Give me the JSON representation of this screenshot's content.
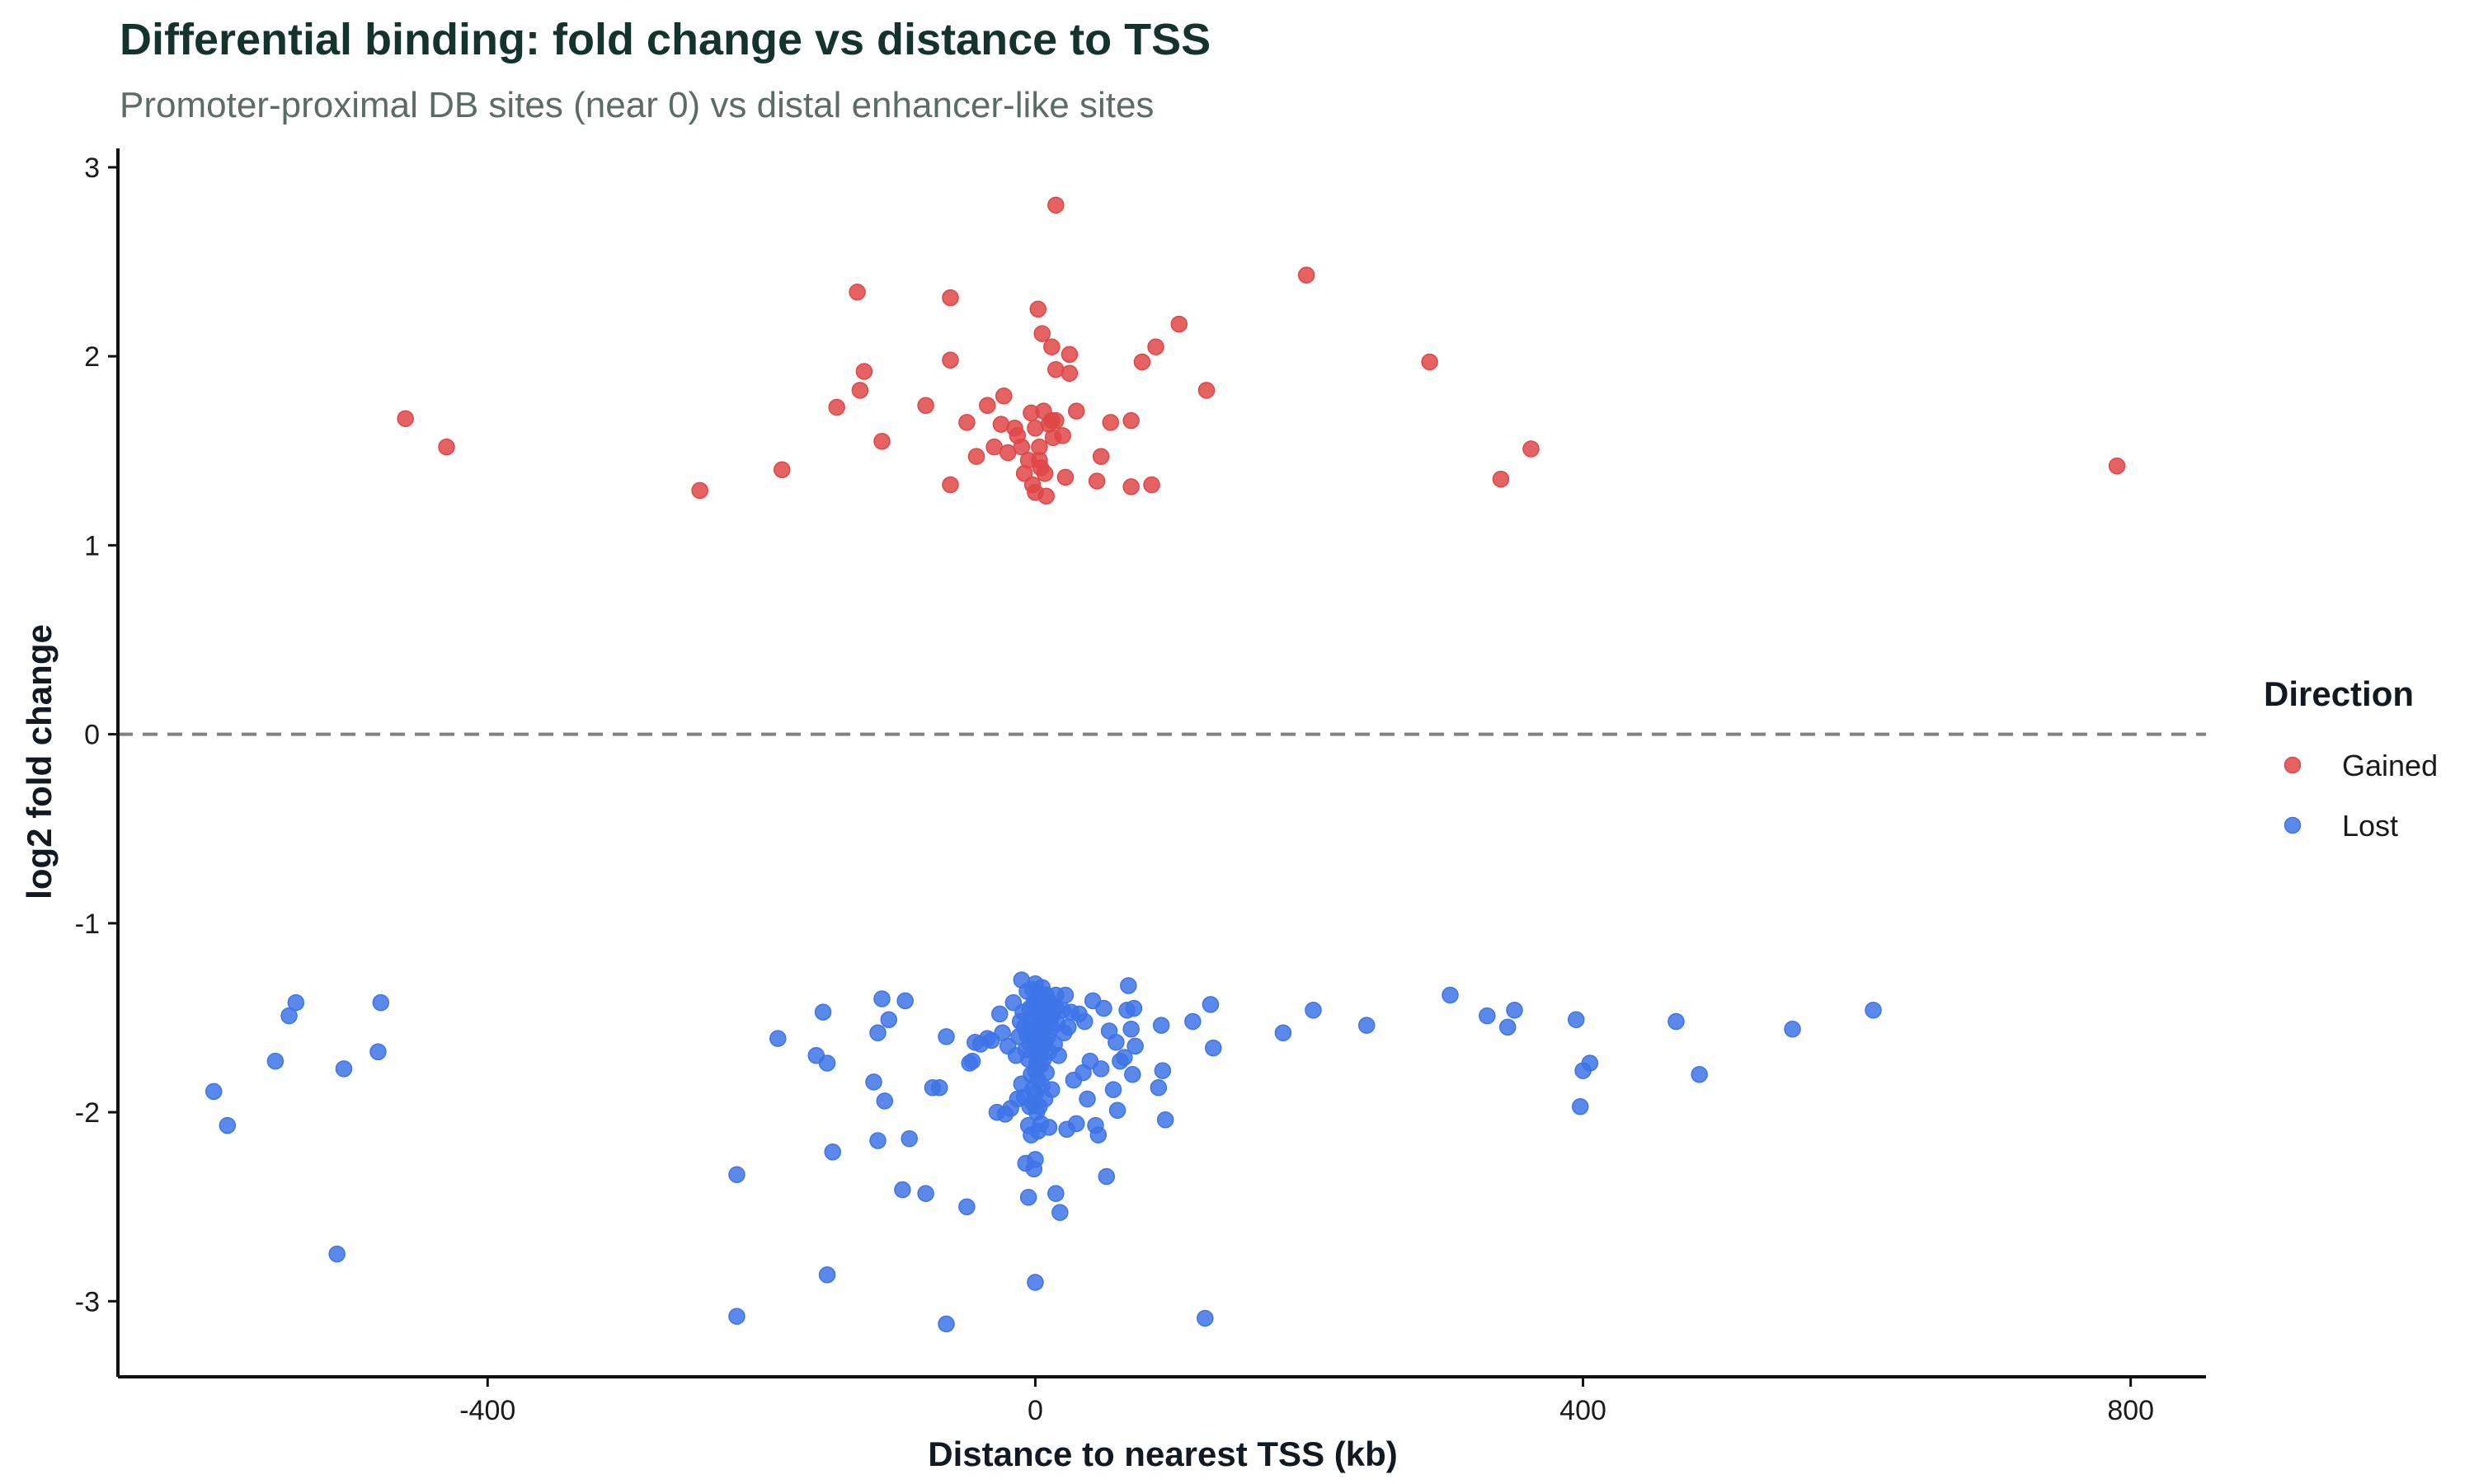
{
  "chart_data": {
    "type": "scatter",
    "title": "Differential binding: fold change vs distance to TSS",
    "subtitle": "Promoter-proximal DB sites (near 0) vs distal enhancer-like sites",
    "xlabel": "Distance to nearest TSS (kb)",
    "ylabel": "log2 fold change",
    "xlim": [
      -670,
      855
    ],
    "ylim": [
      -3.4,
      3.1
    ],
    "x_ticks": [
      -400,
      0,
      400,
      800
    ],
    "y_ticks": [
      -3,
      -2,
      -1,
      0,
      1,
      2,
      3
    ],
    "reference_line": {
      "y": 0,
      "style": "dashed",
      "color": "#808080"
    },
    "grid": false,
    "legend": {
      "title": "Direction",
      "placement": "right"
    },
    "series": [
      {
        "name": "Gained",
        "color": "#e04646",
        "points": [
          [
            -460,
            1.67
          ],
          [
            -430,
            1.52
          ],
          [
            -245,
            1.29
          ],
          [
            -185,
            1.4
          ],
          [
            -145,
            1.73
          ],
          [
            -130,
            2.34
          ],
          [
            -128,
            1.82
          ],
          [
            -125,
            1.92
          ],
          [
            -112,
            1.55
          ],
          [
            -80,
            1.74
          ],
          [
            -62,
            2.31
          ],
          [
            -62,
            1.98
          ],
          [
            -62,
            1.32
          ],
          [
            -50,
            1.65
          ],
          [
            -43,
            1.47
          ],
          [
            -35,
            1.74
          ],
          [
            -30,
            1.52
          ],
          [
            -25,
            1.64
          ],
          [
            -23,
            1.79
          ],
          [
            -20,
            1.49
          ],
          [
            -15,
            1.62
          ],
          [
            -13,
            1.58
          ],
          [
            -10,
            1.52
          ],
          [
            -8,
            1.38
          ],
          [
            -5,
            1.45
          ],
          [
            -3,
            1.7
          ],
          [
            -2,
            1.32
          ],
          [
            0,
            1.28
          ],
          [
            0,
            1.62
          ],
          [
            2,
            2.25
          ],
          [
            3,
            1.52
          ],
          [
            3,
            1.45
          ],
          [
            4,
            1.41
          ],
          [
            5,
            2.12
          ],
          [
            6,
            1.71
          ],
          [
            7,
            1.38
          ],
          [
            8,
            1.26
          ],
          [
            10,
            1.64
          ],
          [
            12,
            1.66
          ],
          [
            12,
            2.05
          ],
          [
            13,
            1.57
          ],
          [
            15,
            1.93
          ],
          [
            15,
            1.66
          ],
          [
            15,
            2.8
          ],
          [
            20,
            1.58
          ],
          [
            22,
            1.36
          ],
          [
            25,
            2.01
          ],
          [
            25,
            1.91
          ],
          [
            30,
            1.71
          ],
          [
            45,
            1.34
          ],
          [
            48,
            1.47
          ],
          [
            55,
            1.65
          ],
          [
            70,
            1.66
          ],
          [
            70,
            1.31
          ],
          [
            78,
            1.97
          ],
          [
            85,
            1.32
          ],
          [
            88,
            2.05
          ],
          [
            105,
            2.17
          ],
          [
            125,
            1.82
          ],
          [
            198,
            2.43
          ],
          [
            288,
            1.97
          ],
          [
            340,
            1.35
          ],
          [
            362,
            1.51
          ],
          [
            790,
            1.42
          ]
        ]
      },
      {
        "name": "Lost",
        "color": "#3d74e8",
        "points": [
          [
            -600,
            -1.89
          ],
          [
            -590,
            -2.07
          ],
          [
            -555,
            -1.73
          ],
          [
            -545,
            -1.49
          ],
          [
            -540,
            -1.42
          ],
          [
            -510,
            -2.75
          ],
          [
            -505,
            -1.77
          ],
          [
            -480,
            -1.68
          ],
          [
            -478,
            -1.42
          ],
          [
            -218,
            -3.08
          ],
          [
            -218,
            -2.33
          ],
          [
            -188,
            -1.61
          ],
          [
            -160,
            -1.7
          ],
          [
            -155,
            -1.47
          ],
          [
            -152,
            -1.74
          ],
          [
            -152,
            -2.86
          ],
          [
            -148,
            -2.21
          ],
          [
            -118,
            -1.84
          ],
          [
            -115,
            -1.58
          ],
          [
            -115,
            -2.15
          ],
          [
            -112,
            -1.4
          ],
          [
            -110,
            -1.94
          ],
          [
            -107,
            -1.51
          ],
          [
            -97,
            -2.41
          ],
          [
            -95,
            -1.41
          ],
          [
            -92,
            -2.14
          ],
          [
            -80,
            -2.43
          ],
          [
            -75,
            -1.87
          ],
          [
            -70,
            -1.87
          ],
          [
            -65,
            -1.6
          ],
          [
            -65,
            -3.12
          ],
          [
            -50,
            -2.5
          ],
          [
            -48,
            -1.74
          ],
          [
            -46,
            -1.73
          ],
          [
            -44,
            -1.63
          ],
          [
            -40,
            -1.64
          ],
          [
            -35,
            -1.61
          ],
          [
            -32,
            -1.62
          ],
          [
            -28,
            -2.0
          ],
          [
            -26,
            -1.48
          ],
          [
            -24,
            -1.58
          ],
          [
            -22,
            -2.01
          ],
          [
            -20,
            -1.65
          ],
          [
            -18,
            -1.98
          ],
          [
            -16,
            -1.42
          ],
          [
            -14,
            -1.7
          ],
          [
            -13,
            -1.93
          ],
          [
            -12,
            -1.6
          ],
          [
            -11,
            -1.52
          ],
          [
            -10,
            -1.85
          ],
          [
            -10,
            -1.3
          ],
          [
            -9,
            -1.47
          ],
          [
            -8,
            -1.55
          ],
          [
            -8,
            -1.92
          ],
          [
            -7,
            -1.67
          ],
          [
            -7,
            -2.27
          ],
          [
            -6,
            -1.36
          ],
          [
            -6,
            -1.59
          ],
          [
            -5,
            -2.07
          ],
          [
            -5,
            -1.72
          ],
          [
            -5,
            -2.45
          ],
          [
            -4,
            -1.45
          ],
          [
            -4,
            -1.64
          ],
          [
            -4,
            -1.97
          ],
          [
            -3,
            -1.52
          ],
          [
            -3,
            -1.8
          ],
          [
            -3,
            -2.12
          ],
          [
            -2,
            -1.35
          ],
          [
            -2,
            -1.58
          ],
          [
            -2,
            -1.88
          ],
          [
            -2,
            -1.95
          ],
          [
            -1,
            -1.42
          ],
          [
            -1,
            -1.68
          ],
          [
            -1,
            -2.3
          ],
          [
            0,
            -1.32
          ],
          [
            0,
            -1.5
          ],
          [
            0,
            -1.62
          ],
          [
            0,
            -1.78
          ],
          [
            0,
            -1.9
          ],
          [
            0,
            -2.25
          ],
          [
            0,
            -2.9
          ],
          [
            1,
            -1.4
          ],
          [
            1,
            -1.55
          ],
          [
            1,
            -1.74
          ],
          [
            1,
            -2.0
          ],
          [
            2,
            -1.46
          ],
          [
            2,
            -1.61
          ],
          [
            2,
            -1.83
          ],
          [
            2,
            -2.1
          ],
          [
            3,
            -1.37
          ],
          [
            3,
            -1.53
          ],
          [
            3,
            -1.69
          ],
          [
            3,
            -1.97
          ],
          [
            4,
            -1.44
          ],
          [
            4,
            -1.59
          ],
          [
            4,
            -1.75
          ],
          [
            4,
            -2.06
          ],
          [
            5,
            -1.34
          ],
          [
            5,
            -1.5
          ],
          [
            5,
            -1.66
          ],
          [
            5,
            -1.86
          ],
          [
            6,
            -1.41
          ],
          [
            6,
            -1.56
          ],
          [
            6,
            -1.72
          ],
          [
            7,
            -1.47
          ],
          [
            7,
            -1.63
          ],
          [
            7,
            -1.93
          ],
          [
            8,
            -1.38
          ],
          [
            8,
            -1.52
          ],
          [
            8,
            -1.79
          ],
          [
            9,
            -1.45
          ],
          [
            9,
            -1.6
          ],
          [
            10,
            -1.5
          ],
          [
            10,
            -1.68
          ],
          [
            10,
            -2.08
          ],
          [
            11,
            -1.42
          ],
          [
            12,
            -1.55
          ],
          [
            12,
            -1.88
          ],
          [
            13,
            -1.48
          ],
          [
            14,
            -1.64
          ],
          [
            15,
            -1.38
          ],
          [
            15,
            -1.45
          ],
          [
            15,
            -2.43
          ],
          [
            16,
            -1.53
          ],
          [
            17,
            -1.7
          ],
          [
            18,
            -2.53
          ],
          [
            20,
            -1.46
          ],
          [
            21,
            -1.58
          ],
          [
            22,
            -1.38
          ],
          [
            23,
            -2.09
          ],
          [
            24,
            -1.55
          ],
          [
            26,
            -1.47
          ],
          [
            28,
            -1.83
          ],
          [
            30,
            -2.06
          ],
          [
            32,
            -1.48
          ],
          [
            35,
            -1.79
          ],
          [
            36,
            -1.52
          ],
          [
            38,
            -1.93
          ],
          [
            40,
            -1.73
          ],
          [
            42,
            -1.41
          ],
          [
            44,
            -2.07
          ],
          [
            46,
            -2.12
          ],
          [
            48,
            -1.77
          ],
          [
            50,
            -1.45
          ],
          [
            52,
            -2.34
          ],
          [
            54,
            -1.57
          ],
          [
            57,
            -1.88
          ],
          [
            59,
            -1.63
          ],
          [
            60,
            -1.99
          ],
          [
            62,
            -1.73
          ],
          [
            65,
            -1.71
          ],
          [
            67,
            -1.46
          ],
          [
            68,
            -1.33
          ],
          [
            70,
            -1.56
          ],
          [
            71,
            -1.8
          ],
          [
            72,
            -1.45
          ],
          [
            73,
            -1.65
          ],
          [
            90,
            -1.87
          ],
          [
            92,
            -1.54
          ],
          [
            93,
            -1.78
          ],
          [
            95,
            -2.04
          ],
          [
            115,
            -1.52
          ],
          [
            124,
            -3.09
          ],
          [
            128,
            -1.43
          ],
          [
            130,
            -1.66
          ],
          [
            181,
            -1.58
          ],
          [
            203,
            -1.46
          ],
          [
            242,
            -1.54
          ],
          [
            303,
            -1.38
          ],
          [
            330,
            -1.49
          ],
          [
            345,
            -1.55
          ],
          [
            350,
            -1.46
          ],
          [
            395,
            -1.51
          ],
          [
            398,
            -1.97
          ],
          [
            400,
            -1.78
          ],
          [
            405,
            -1.74
          ],
          [
            468,
            -1.52
          ],
          [
            485,
            -1.8
          ],
          [
            553,
            -1.56
          ],
          [
            612,
            -1.46
          ]
        ]
      }
    ]
  }
}
